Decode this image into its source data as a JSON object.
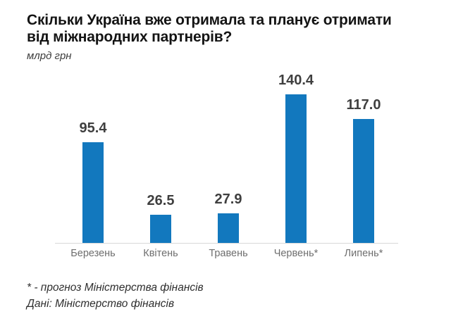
{
  "header": {
    "title_lines": [
      "Скільки Україна вже отримала та планує отримати",
      "від міжнародних партнерів?"
    ],
    "subtitle": "млрд грн"
  },
  "chart_data": {
    "type": "bar",
    "title": "Скільки Україна вже отримала та планує отримати від міжнародних партнерів?",
    "subtitle_unit": "млрд грн",
    "categories": [
      "Березень",
      "Квітень",
      "Травень",
      "Червень*",
      "Липень*"
    ],
    "values": [
      95.4,
      26.5,
      27.9,
      140.4,
      117.0
    ],
    "value_labels": [
      "95.4",
      "26.5",
      "27.9",
      "140.4",
      "117.0"
    ],
    "xlabel": "",
    "ylabel": "млрд грн",
    "ylim": [
      0,
      150
    ],
    "grid": false,
    "legend": false,
    "value_labels_position": "above-bars"
  },
  "footer": {
    "footnote": "* - прогноз Міністерства фінансів",
    "source": "Дані: Міністерство фінансів"
  },
  "colors": {
    "bar": "#1278BE",
    "value_label": "#3F3F3F",
    "category_label": "#6E6E6E",
    "axis_line": "#D8D8D8",
    "title": "#141414"
  }
}
